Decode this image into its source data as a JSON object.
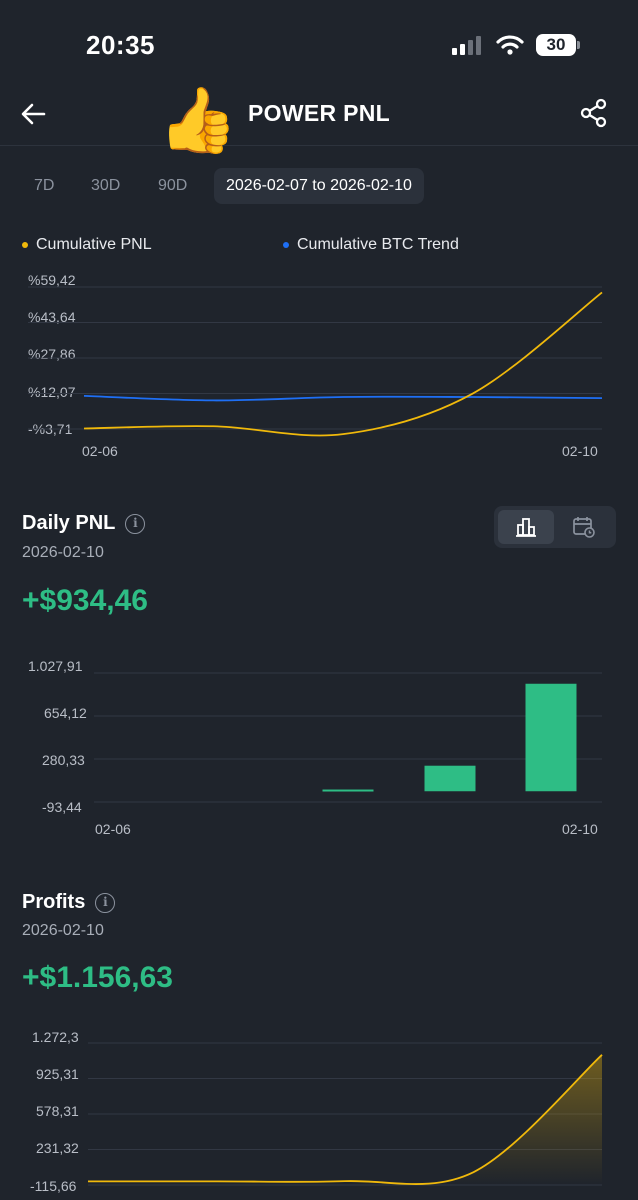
{
  "status_bar": {
    "time": "20:35",
    "battery": "30"
  },
  "header": {
    "title": "POWER PNL",
    "emoji": "👍"
  },
  "range_tabs": {
    "tab_7d": "7D",
    "tab_30d": "30D",
    "tab_90d": "90D",
    "custom_range": "2026-02-07 to 2026-02-10",
    "selected": "custom_range"
  },
  "cumulative_chart": {
    "legend": {
      "pnl": "Cumulative PNL",
      "btc": "Cumulative BTC Trend"
    },
    "colors": {
      "pnl": "#f0b90b",
      "btc": "#1e6ff5"
    }
  },
  "daily_pnl": {
    "title": "Daily PNL",
    "date": "2026-02-10",
    "value": "+$934,46",
    "toggle": {
      "active": "bar-chart-icon",
      "inactive": "calendar-icon"
    }
  },
  "profits": {
    "title": "Profits",
    "date": "2026-02-10",
    "value": "+$1.156,63"
  },
  "chart_data": [
    {
      "type": "line",
      "title": "",
      "y_tick_labels": [
        "%59,42",
        "%43,64",
        "%27,86",
        "%12,07",
        "-%3,71"
      ],
      "x_tick_labels": [
        "02-06",
        "02-10"
      ],
      "ylim": [
        -3.71,
        59.42
      ],
      "x": [
        "02-06",
        "02-07",
        "02-08",
        "02-09",
        "02-10"
      ],
      "series": [
        {
          "name": "Cumulative PNL",
          "values": [
            -3.5,
            -2.5,
            -6.0,
            12,
            57
          ]
        },
        {
          "name": "Cumulative BTC Trend",
          "values": [
            11.0,
            9.0,
            10.5,
            10.5,
            10.0
          ]
        }
      ],
      "grid": true,
      "legend_position": "top"
    },
    {
      "type": "bar",
      "title": "",
      "y_tick_labels": [
        "1.027,91",
        "654,12",
        "280,33",
        "-93,44"
      ],
      "x_tick_labels": [
        "02-06",
        "02-10"
      ],
      "ylim": [
        -93.44,
        1027.91
      ],
      "categories": [
        "02-06",
        "02-07",
        "02-08",
        "02-09",
        "02-10"
      ],
      "values": [
        0,
        0,
        15,
        222,
        934.46
      ],
      "grid": true
    },
    {
      "type": "area",
      "title": "",
      "y_tick_labels": [
        "1.272,3",
        "925,31",
        "578,31",
        "231,32",
        "-115,66"
      ],
      "ylim": [
        -115.66,
        1272.3
      ],
      "x": [
        "02-06",
        "02-07",
        "02-08",
        "02-09",
        "02-10"
      ],
      "values": [
        -80,
        -80,
        -78,
        10,
        1156.63
      ],
      "grid": true
    }
  ]
}
